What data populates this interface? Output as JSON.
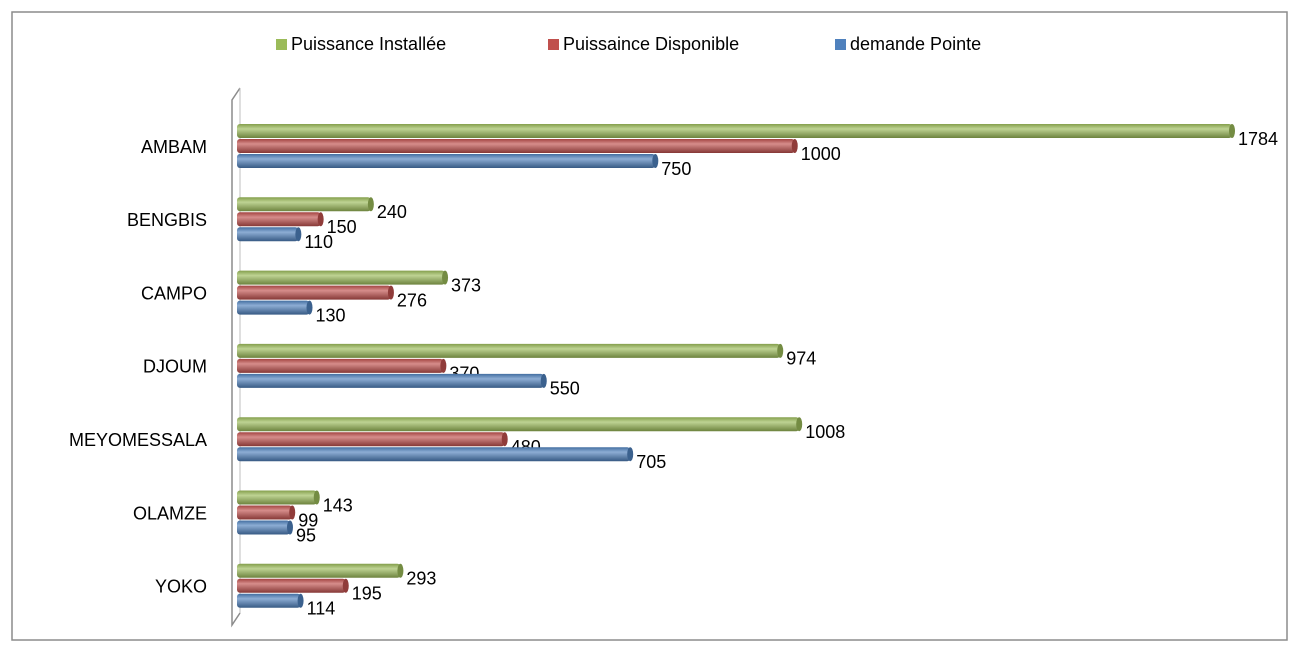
{
  "chart_data": {
    "type": "barh",
    "categories": [
      "AMBAM",
      "BENGBIS",
      "CAMPO",
      "DJOUM",
      "MEYOMESSALA",
      "OLAMZE",
      "YOKO"
    ],
    "series": [
      {
        "name": "Puissance Installée",
        "color": "#9bbb59",
        "values": [
          1784,
          240,
          373,
          974,
          1008,
          143,
          293
        ]
      },
      {
        "name": "Puissaince Disponible",
        "color": "#c0504d",
        "values": [
          1000,
          150,
          276,
          370,
          480,
          99,
          195
        ]
      },
      {
        "name": "demande Pointe",
        "color": "#4f81bd",
        "values": [
          750,
          110,
          130,
          550,
          705,
          95,
          114
        ]
      }
    ],
    "legend": "top"
  }
}
